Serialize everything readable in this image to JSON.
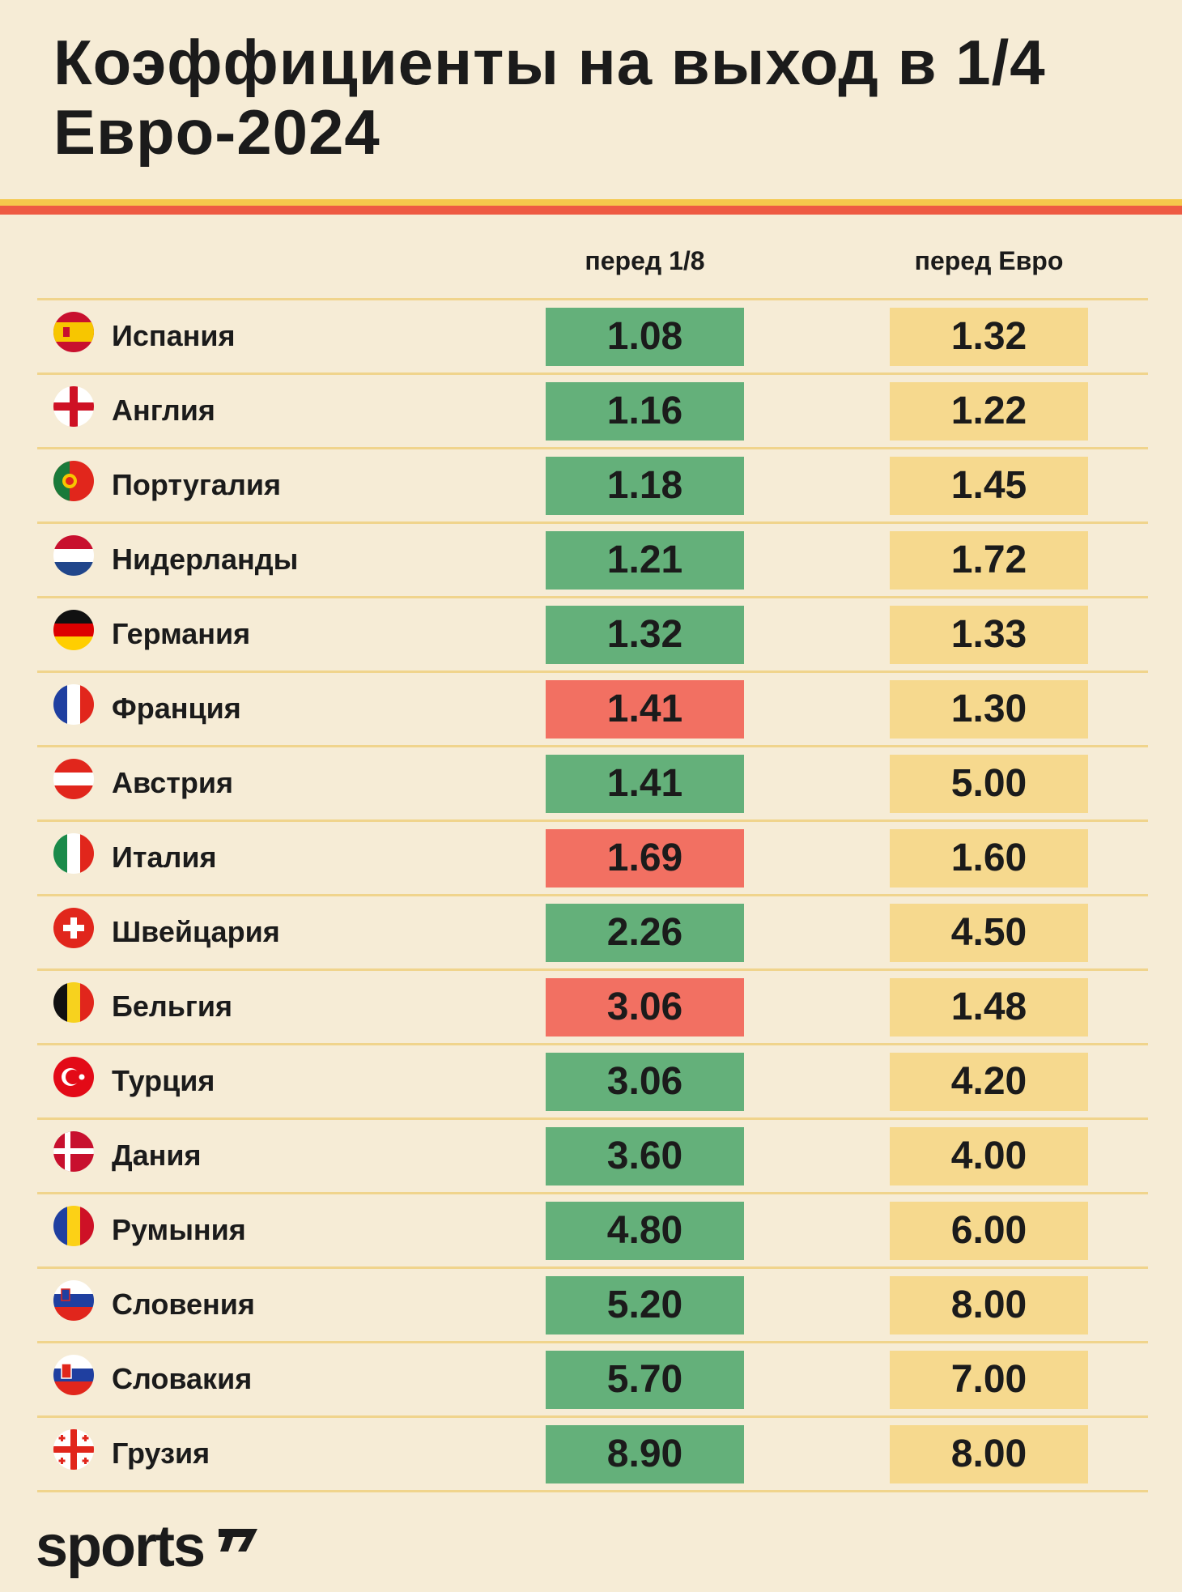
{
  "title": "Коэффициенты на выход в 1/4 Евро-2024",
  "brand": "sports",
  "colors": {
    "background": "#f6ecd6",
    "green": "#64b07a",
    "red": "#f27062",
    "yellow": "#f6d98e",
    "stripe_yellow": "#f5c84c",
    "stripe_red": "#ee5a43"
  },
  "chart_data": {
    "type": "table",
    "title": "Коэффициенты на выход в 1/4 Евро-2024",
    "columns": [
      "перед 1/8",
      "перед Евро"
    ],
    "rows": [
      {
        "team": "Испания",
        "flag": "spain-flag-icon",
        "before_r16": "1.08",
        "before_euro": "1.32",
        "status": "green"
      },
      {
        "team": "Англия",
        "flag": "england-flag-icon",
        "before_r16": "1.16",
        "before_euro": "1.22",
        "status": "green"
      },
      {
        "team": "Португалия",
        "flag": "portugal-flag-icon",
        "before_r16": "1.18",
        "before_euro": "1.45",
        "status": "green"
      },
      {
        "team": "Нидерланды",
        "flag": "netherlands-flag-icon",
        "before_r16": "1.21",
        "before_euro": "1.72",
        "status": "green"
      },
      {
        "team": "Германия",
        "flag": "germany-flag-icon",
        "before_r16": "1.32",
        "before_euro": "1.33",
        "status": "green"
      },
      {
        "team": "Франция",
        "flag": "france-flag-icon",
        "before_r16": "1.41",
        "before_euro": "1.30",
        "status": "red"
      },
      {
        "team": "Австрия",
        "flag": "austria-flag-icon",
        "before_r16": "1.41",
        "before_euro": "5.00",
        "status": "green"
      },
      {
        "team": "Италия",
        "flag": "italy-flag-icon",
        "before_r16": "1.69",
        "before_euro": "1.60",
        "status": "red"
      },
      {
        "team": "Швейцария",
        "flag": "switzerland-flag-icon",
        "before_r16": "2.26",
        "before_euro": "4.50",
        "status": "green"
      },
      {
        "team": "Бельгия",
        "flag": "belgium-flag-icon",
        "before_r16": "3.06",
        "before_euro": "1.48",
        "status": "red"
      },
      {
        "team": "Турция",
        "flag": "turkey-flag-icon",
        "before_r16": "3.06",
        "before_euro": "4.20",
        "status": "green"
      },
      {
        "team": "Дания",
        "flag": "denmark-flag-icon",
        "before_r16": "3.60",
        "before_euro": "4.00",
        "status": "green"
      },
      {
        "team": "Румыния",
        "flag": "romania-flag-icon",
        "before_r16": "4.80",
        "before_euro": "6.00",
        "status": "green"
      },
      {
        "team": "Словения",
        "flag": "slovenia-flag-icon",
        "before_r16": "5.20",
        "before_euro": "8.00",
        "status": "green"
      },
      {
        "team": "Словакия",
        "flag": "slovakia-flag-icon",
        "before_r16": "5.70",
        "before_euro": "7.00",
        "status": "green"
      },
      {
        "team": "Грузия",
        "flag": "georgia-flag-icon",
        "before_r16": "8.90",
        "before_euro": "8.00",
        "status": "green"
      }
    ]
  }
}
